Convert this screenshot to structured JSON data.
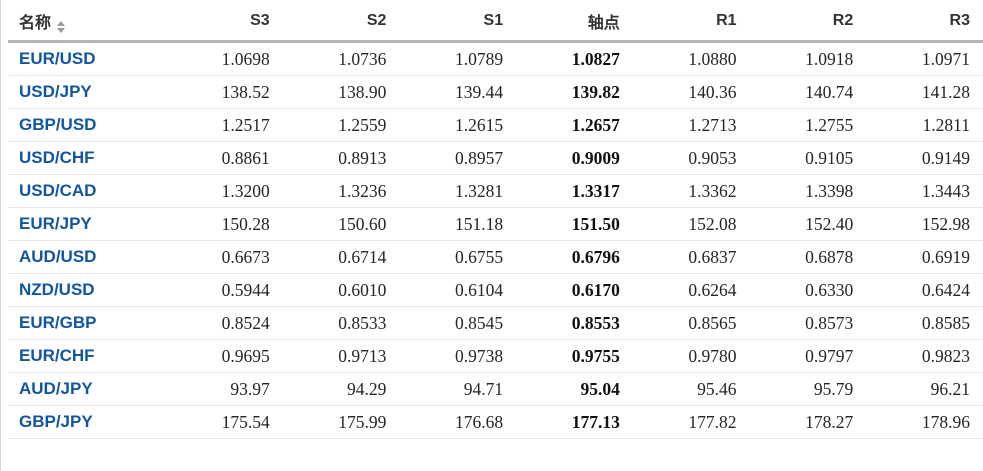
{
  "colors": {
    "pair_link_blue": "#1256a0",
    "header_text": "#333333",
    "number_text": "#232526",
    "pivot_bold_text": "#111111",
    "header_underline": "#b5b5b5",
    "row_separator": "#e6e6e6",
    "left_border": "#d9d9d9",
    "sort_icon_gray": "#9a9a9a"
  },
  "table": {
    "columns": [
      {
        "key": "name",
        "label": "名称"
      },
      {
        "key": "s3",
        "label": "S3"
      },
      {
        "key": "s2",
        "label": "S2"
      },
      {
        "key": "s1",
        "label": "S1"
      },
      {
        "key": "pivot",
        "label": "轴点"
      },
      {
        "key": "r1",
        "label": "R1"
      },
      {
        "key": "r2",
        "label": "R2"
      },
      {
        "key": "r3",
        "label": "R3"
      }
    ],
    "sort_icon": "sort-arrows-up-down",
    "rows": [
      {
        "name": "EUR/USD",
        "s3": "1.0698",
        "s2": "1.0736",
        "s1": "1.0789",
        "pivot": "1.0827",
        "r1": "1.0880",
        "r2": "1.0918",
        "r3": "1.0971"
      },
      {
        "name": "USD/JPY",
        "s3": "138.52",
        "s2": "138.90",
        "s1": "139.44",
        "pivot": "139.82",
        "r1": "140.36",
        "r2": "140.74",
        "r3": "141.28"
      },
      {
        "name": "GBP/USD",
        "s3": "1.2517",
        "s2": "1.2559",
        "s1": "1.2615",
        "pivot": "1.2657",
        "r1": "1.2713",
        "r2": "1.2755",
        "r3": "1.2811"
      },
      {
        "name": "USD/CHF",
        "s3": "0.8861",
        "s2": "0.8913",
        "s1": "0.8957",
        "pivot": "0.9009",
        "r1": "0.9053",
        "r2": "0.9105",
        "r3": "0.9149"
      },
      {
        "name": "USD/CAD",
        "s3": "1.3200",
        "s2": "1.3236",
        "s1": "1.3281",
        "pivot": "1.3317",
        "r1": "1.3362",
        "r2": "1.3398",
        "r3": "1.3443"
      },
      {
        "name": "EUR/JPY",
        "s3": "150.28",
        "s2": "150.60",
        "s1": "151.18",
        "pivot": "151.50",
        "r1": "152.08",
        "r2": "152.40",
        "r3": "152.98"
      },
      {
        "name": "AUD/USD",
        "s3": "0.6673",
        "s2": "0.6714",
        "s1": "0.6755",
        "pivot": "0.6796",
        "r1": "0.6837",
        "r2": "0.6878",
        "r3": "0.6919"
      },
      {
        "name": "NZD/USD",
        "s3": "0.5944",
        "s2": "0.6010",
        "s1": "0.6104",
        "pivot": "0.6170",
        "r1": "0.6264",
        "r2": "0.6330",
        "r3": "0.6424"
      },
      {
        "name": "EUR/GBP",
        "s3": "0.8524",
        "s2": "0.8533",
        "s1": "0.8545",
        "pivot": "0.8553",
        "r1": "0.8565",
        "r2": "0.8573",
        "r3": "0.8585"
      },
      {
        "name": "EUR/CHF",
        "s3": "0.9695",
        "s2": "0.9713",
        "s1": "0.9738",
        "pivot": "0.9755",
        "r1": "0.9780",
        "r2": "0.9797",
        "r3": "0.9823"
      },
      {
        "name": "AUD/JPY",
        "s3": "93.97",
        "s2": "94.29",
        "s1": "94.71",
        "pivot": "95.04",
        "r1": "95.46",
        "r2": "95.79",
        "r3": "96.21"
      },
      {
        "name": "GBP/JPY",
        "s3": "175.54",
        "s2": "175.99",
        "s1": "176.68",
        "pivot": "177.13",
        "r1": "177.82",
        "r2": "178.27",
        "r3": "178.96"
      }
    ]
  }
}
